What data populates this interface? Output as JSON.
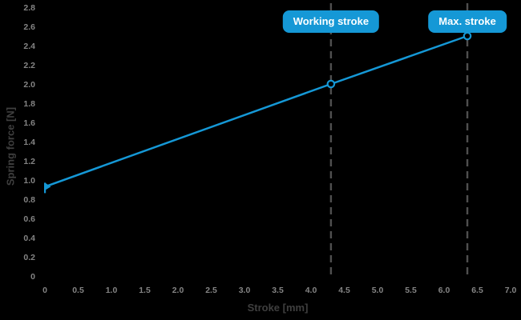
{
  "chart_data": {
    "type": "line",
    "title": "",
    "xlabel": "Stroke [mm]",
    "ylabel": "Spring force [N]",
    "xlim": [
      0,
      7.0
    ],
    "ylim": [
      0,
      2.8
    ],
    "grid": false,
    "legend": "none",
    "x_ticks": [
      "0",
      "0.5",
      "1.0",
      "1.5",
      "2.0",
      "2.5",
      "3.0",
      "3.5",
      "4.0",
      "4.5",
      "5.0",
      "5.5",
      "6.0",
      "6.5",
      "7.0"
    ],
    "y_ticks": [
      "0",
      "0.2",
      "0.4",
      "0.6",
      "0.8",
      "1.0",
      "1.2",
      "1.4",
      "1.6",
      "1.8",
      "2.0",
      "2.2",
      "2.4",
      "2.6",
      "2.8"
    ],
    "series": [
      {
        "name": "Spring force",
        "points": [
          {
            "x": 0,
            "y": 0.93
          },
          {
            "x": 4.3,
            "y": 2.0
          },
          {
            "x": 6.35,
            "y": 2.5
          }
        ]
      }
    ],
    "annotations": [
      {
        "label": "Working stroke",
        "x": 4.3
      },
      {
        "label": "Max. stroke",
        "x": 6.35
      }
    ]
  },
  "colors": {
    "background": "#000000",
    "accent_blue": "#1598d6",
    "annotation_box": "#1598d6",
    "annotation_text": "#ffffff",
    "tick_label": "#848484",
    "axis_title": "#3f3f3f",
    "dashed_line": "#4f4f4f"
  }
}
